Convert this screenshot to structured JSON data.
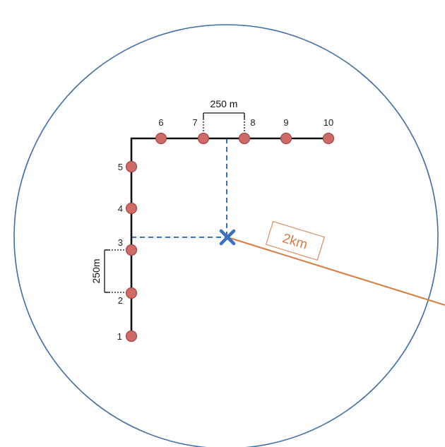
{
  "diagram": {
    "points": [
      {
        "label": "1"
      },
      {
        "label": "2"
      },
      {
        "label": "3"
      },
      {
        "label": "4"
      },
      {
        "label": "5"
      },
      {
        "label": "6"
      },
      {
        "label": "7"
      },
      {
        "label": "8"
      },
      {
        "label": "9"
      },
      {
        "label": "10"
      }
    ],
    "spacing_label_top": "250 m",
    "spacing_label_left": "250m",
    "radius_label": "2km",
    "colors": {
      "circle": "#3b6ea8",
      "survey_line": "#111111",
      "point_fill": "#cf6a66",
      "point_stroke": "#9e4a46",
      "center_marker": "#3a6fc4",
      "projection_dashes": "#3a6fc4",
      "radius_line": "#d97a3f",
      "radius_label_color": "#d97a3f"
    }
  }
}
